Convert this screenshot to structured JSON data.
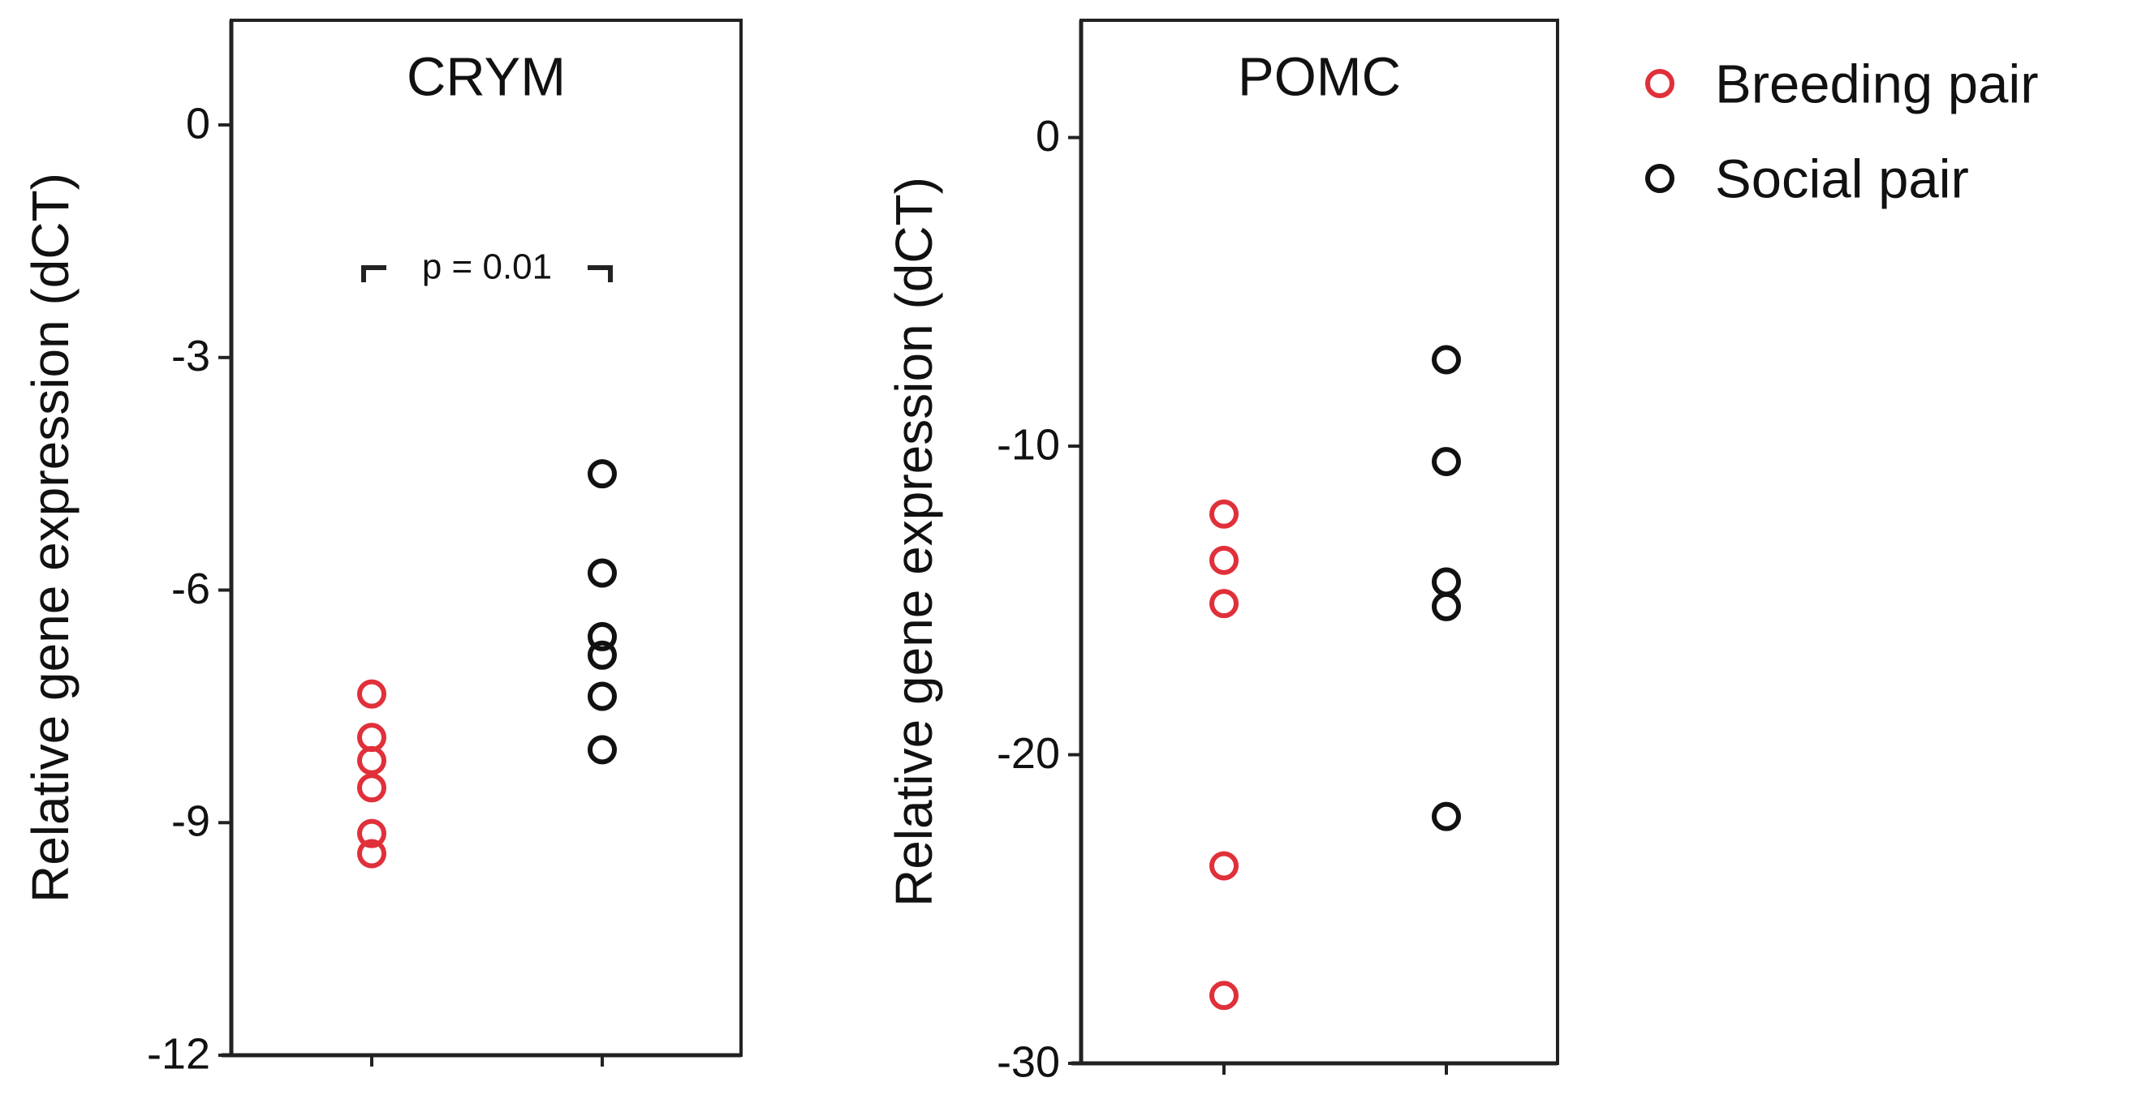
{
  "chart_data": [
    {
      "type": "scatter",
      "title": "CRYM",
      "y_label": "Relative gene expression (dCT)",
      "annotation": "p = 0.01",
      "ylim": [
        -12,
        1.35
      ],
      "yticks": [
        0,
        -3,
        -6,
        -9,
        -12
      ],
      "series": [
        {
          "color": "#e0303a",
          "values": [
            -7.34,
            -7.9,
            -8.2,
            -8.55,
            -9.14,
            -9.4
          ]
        },
        {
          "color": "#111111",
          "values": [
            -4.5,
            -5.78,
            -6.6,
            -6.84,
            -7.37,
            -8.06
          ]
        }
      ]
    },
    {
      "type": "scatter",
      "title": "POMC",
      "y_label": "Relative gene expression (dCT)",
      "ylim": [
        -30,
        3.8
      ],
      "yticks": [
        0,
        -10,
        -20,
        -30
      ],
      "series": [
        {
          "name": "Breeding pair",
          "color": "#e0303a",
          "values": [
            -12.2,
            -13.7,
            -15.1,
            -23.6,
            -27.8
          ]
        },
        {
          "name": "Social pair",
          "color": "#111111",
          "values": [
            -7.2,
            -10.5,
            -14.4,
            -15.2,
            -22.0
          ]
        }
      ]
    }
  ]
}
